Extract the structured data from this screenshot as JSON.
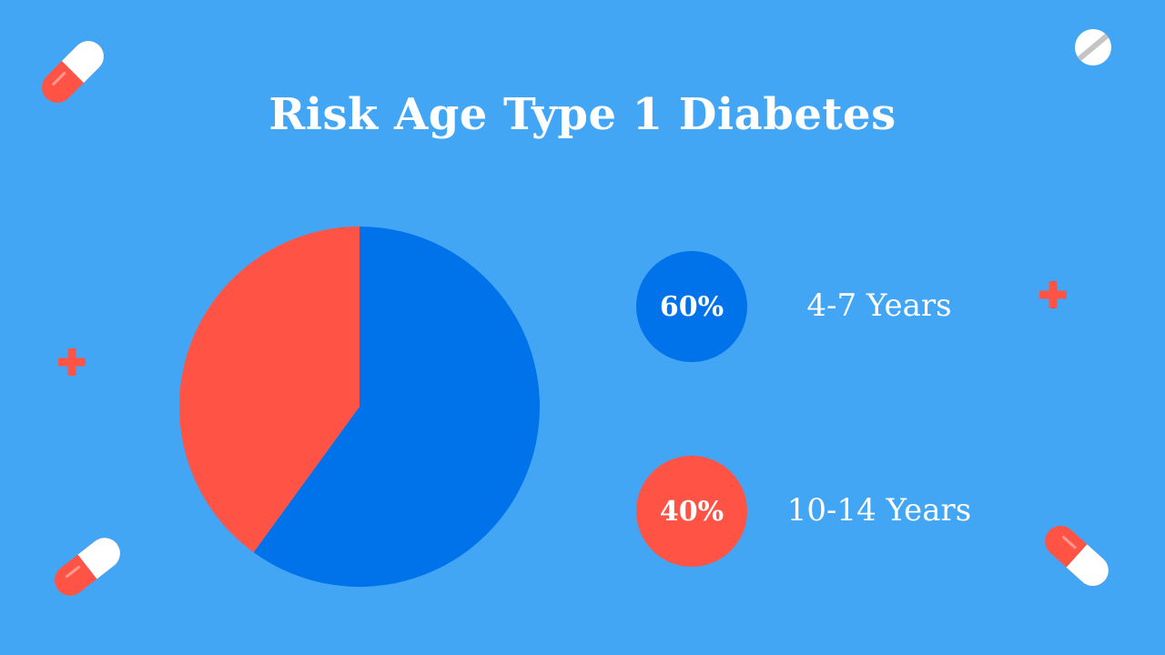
{
  "chart_data": {
    "type": "pie",
    "title": "Risk Age Type 1 Diabetes",
    "categories": [
      "4-7 Years",
      "10-14 Years"
    ],
    "values": [
      60,
      40
    ],
    "labels": [
      "60%",
      "40%"
    ],
    "colors": [
      "#0073ea",
      "#ff5346"
    ]
  },
  "colors": {
    "background": "#42a6f5",
    "accent_red": "#ff5346",
    "accent_blue": "#0073ea"
  },
  "decorations": [
    "capsule-pill-icon",
    "round-tablet-icon",
    "medical-cross-icon"
  ]
}
